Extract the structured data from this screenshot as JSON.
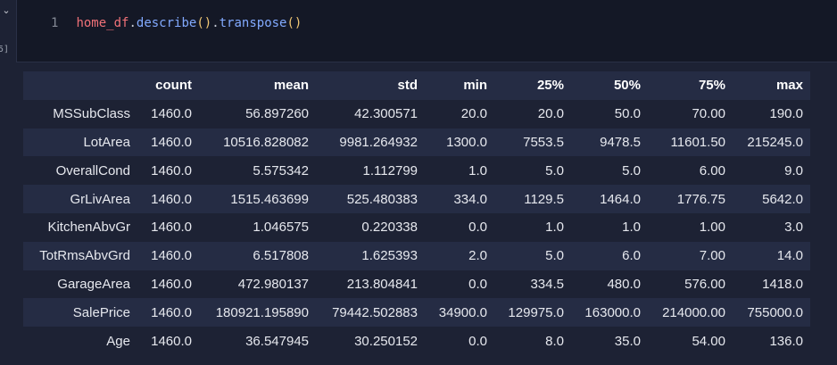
{
  "gutter": {
    "chevron_icon": "chevron-down-icon",
    "exec_count": "5]"
  },
  "code": {
    "line_number": "1",
    "tokens": {
      "var": "home_df",
      "dot1": ".",
      "fn1": "describe",
      "parens1": "()",
      "dot2": ".",
      "fn2": "transpose",
      "parens2": "()"
    }
  },
  "table": {
    "columns": [
      "",
      "count",
      "mean",
      "std",
      "min",
      "25%",
      "50%",
      "75%",
      "max"
    ],
    "rows": [
      {
        "index": "MSSubClass",
        "values": [
          "1460.0",
          "56.897260",
          "42.300571",
          "20.0",
          "20.0",
          "50.0",
          "70.00",
          "190.0"
        ]
      },
      {
        "index": "LotArea",
        "values": [
          "1460.0",
          "10516.828082",
          "9981.264932",
          "1300.0",
          "7553.5",
          "9478.5",
          "11601.50",
          "215245.0"
        ]
      },
      {
        "index": "OverallCond",
        "values": [
          "1460.0",
          "5.575342",
          "1.112799",
          "1.0",
          "5.0",
          "5.0",
          "6.00",
          "9.0"
        ]
      },
      {
        "index": "GrLivArea",
        "values": [
          "1460.0",
          "1515.463699",
          "525.480383",
          "334.0",
          "1129.5",
          "1464.0",
          "1776.75",
          "5642.0"
        ]
      },
      {
        "index": "KitchenAbvGr",
        "values": [
          "1460.0",
          "1.046575",
          "0.220338",
          "0.0",
          "1.0",
          "1.0",
          "1.00",
          "3.0"
        ]
      },
      {
        "index": "TotRmsAbvGrd",
        "values": [
          "1460.0",
          "6.517808",
          "1.625393",
          "2.0",
          "5.0",
          "6.0",
          "7.00",
          "14.0"
        ]
      },
      {
        "index": "GarageArea",
        "values": [
          "1460.0",
          "472.980137",
          "213.804841",
          "0.0",
          "334.5",
          "480.0",
          "576.00",
          "1418.0"
        ]
      },
      {
        "index": "SalePrice",
        "values": [
          "1460.0",
          "180921.195890",
          "79442.502883",
          "34900.0",
          "129975.0",
          "163000.0",
          "214000.00",
          "755000.0"
        ]
      },
      {
        "index": "Age",
        "values": [
          "1460.0",
          "36.547945",
          "30.250152",
          "0.0",
          "8.0",
          "35.0",
          "54.00",
          "136.0"
        ]
      }
    ]
  }
}
